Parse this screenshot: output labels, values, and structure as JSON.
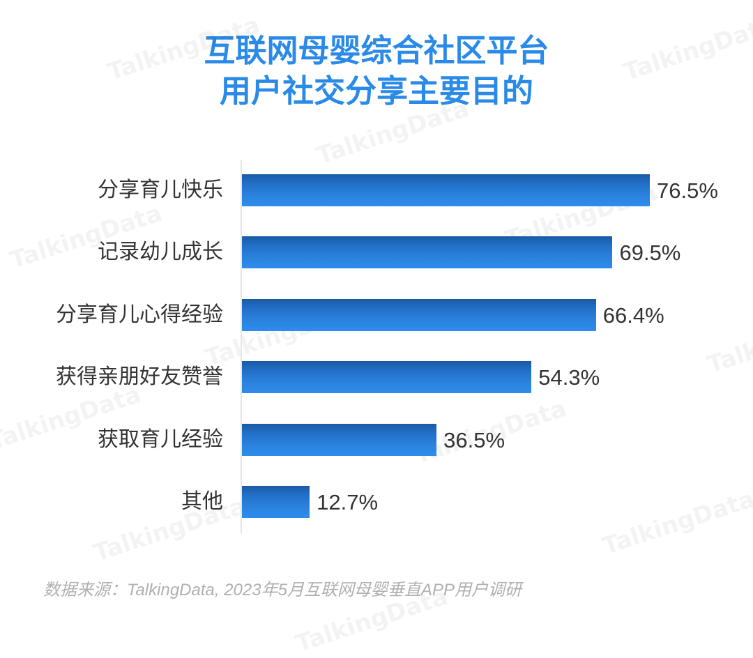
{
  "chart_data": {
    "type": "bar",
    "orientation": "horizontal",
    "title": [
      "互联网母婴综合社区平台",
      "用户社交分享主要目的"
    ],
    "categories": [
      "分享育儿快乐",
      "记录幼儿成长",
      "分享育儿心得经验",
      "获得亲朋好友赞誉",
      "获取育儿经验",
      "其他"
    ],
    "values": [
      76.5,
      69.5,
      66.4,
      54.3,
      36.5,
      12.7
    ],
    "value_labels": [
      "76.5%",
      "69.5%",
      "66.4%",
      "54.3%",
      "36.5%",
      "12.7%"
    ],
    "unit": "%",
    "xlim": [
      0,
      100
    ],
    "grid": false,
    "bar_color": "#2b84df",
    "title_color": "#2a8ae8"
  },
  "source": "数据来源：TalkingData, 2023年5月互联网母婴垂直APP用户调研",
  "watermark": "TalkingData"
}
